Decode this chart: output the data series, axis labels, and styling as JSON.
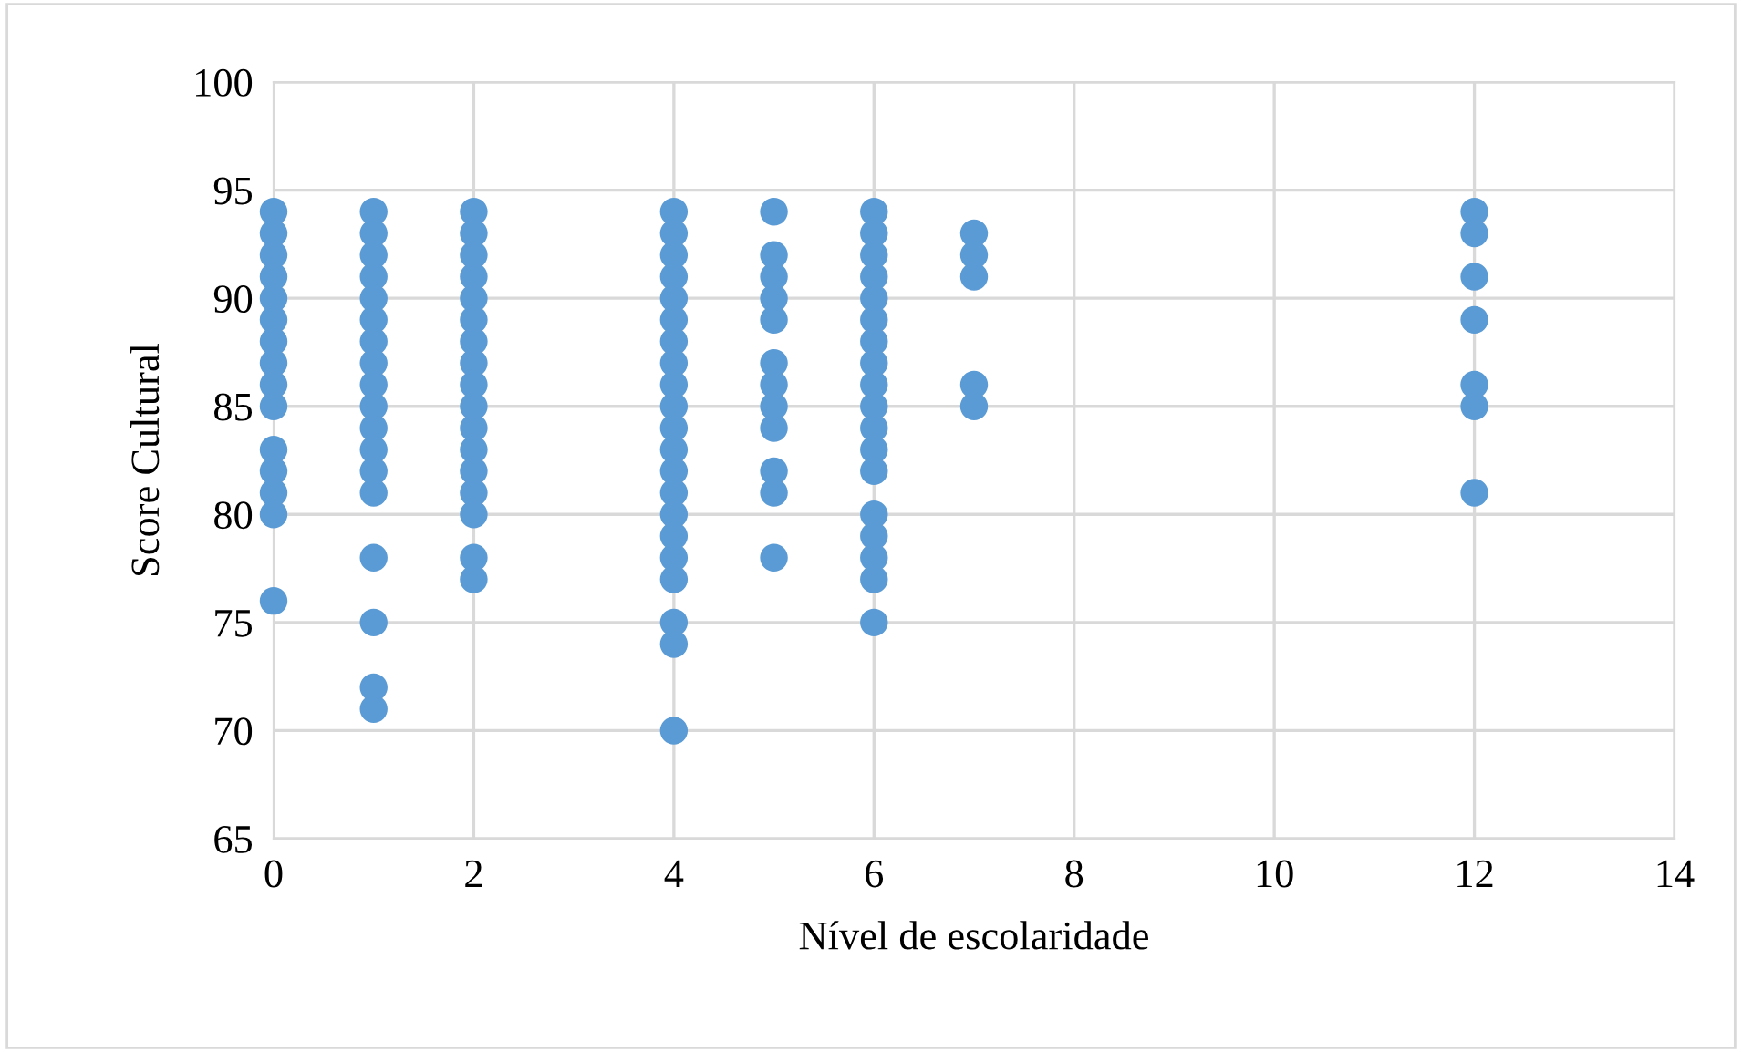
{
  "chart_data": {
    "type": "scatter",
    "xlabel": "Nível de escolaridade",
    "ylabel": "Score Cultural",
    "xlim": [
      0,
      14
    ],
    "xticks": [
      0,
      2,
      4,
      6,
      8,
      10,
      12,
      14
    ],
    "ylim": [
      65,
      100
    ],
    "yticks": [
      65,
      70,
      75,
      80,
      85,
      90,
      95,
      100
    ],
    "grid": true,
    "legend": false,
    "marker": "circle",
    "series": [
      {
        "color": "#5b9bd5",
        "x": [
          0,
          0,
          0,
          0,
          0,
          0,
          0,
          0,
          0,
          0,
          0,
          0,
          0,
          0,
          0,
          1,
          1,
          1,
          1,
          1,
          1,
          1,
          1,
          1,
          1,
          1,
          1,
          1,
          1,
          1,
          1,
          1,
          1,
          2,
          2,
          2,
          2,
          2,
          2,
          2,
          2,
          2,
          2,
          2,
          2,
          2,
          2,
          2,
          2,
          2,
          4,
          4,
          4,
          4,
          4,
          4,
          4,
          4,
          4,
          4,
          4,
          4,
          4,
          4,
          4,
          4,
          4,
          4,
          4,
          4,
          4,
          5,
          5,
          5,
          5,
          5,
          5,
          5,
          5,
          5,
          5,
          5,
          5,
          6,
          6,
          6,
          6,
          6,
          6,
          6,
          6,
          6,
          6,
          6,
          6,
          6,
          6,
          6,
          6,
          6,
          6,
          7,
          7,
          7,
          7,
          7,
          12,
          12,
          12,
          12,
          12,
          12,
          12
        ],
        "values": [
          94,
          93,
          92,
          91,
          90,
          89,
          88,
          87,
          86,
          85,
          83,
          82,
          81,
          80,
          76,
          94,
          93,
          92,
          91,
          90,
          89,
          88,
          87,
          86,
          85,
          84,
          83,
          82,
          81,
          78,
          75,
          72,
          71,
          94,
          93,
          92,
          91,
          90,
          89,
          88,
          87,
          86,
          85,
          84,
          83,
          82,
          81,
          80,
          78,
          77,
          94,
          93,
          92,
          91,
          90,
          89,
          88,
          87,
          86,
          85,
          84,
          83,
          82,
          81,
          80,
          79,
          78,
          77,
          75,
          74,
          70,
          94,
          92,
          91,
          90,
          89,
          87,
          86,
          85,
          84,
          82,
          81,
          78,
          94,
          93,
          92,
          91,
          90,
          89,
          88,
          87,
          86,
          85,
          84,
          83,
          82,
          80,
          79,
          78,
          77,
          75,
          93,
          92,
          91,
          86,
          85,
          94,
          93,
          91,
          89,
          86,
          85,
          81
        ]
      }
    ]
  }
}
